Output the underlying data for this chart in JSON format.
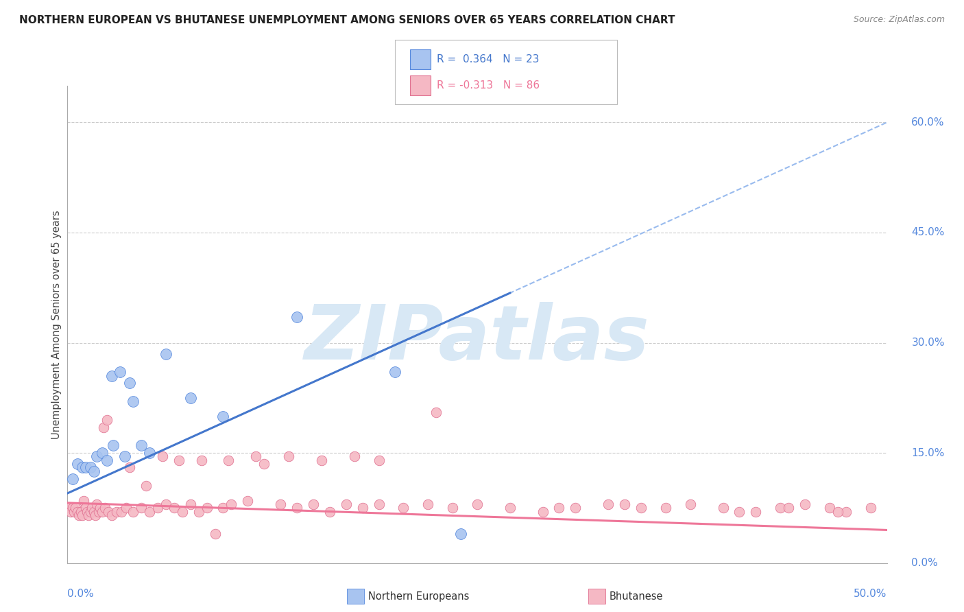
{
  "title": "NORTHERN EUROPEAN VS BHUTANESE UNEMPLOYMENT AMONG SENIORS OVER 65 YEARS CORRELATION CHART",
  "source": "Source: ZipAtlas.com",
  "ylabel": "Unemployment Among Seniors over 65 years",
  "xrange": [
    0.0,
    50.0
  ],
  "yrange": [
    0.0,
    65.0
  ],
  "blue_color": "#a8c4f0",
  "blue_edge_color": "#5588dd",
  "pink_color": "#f5b8c4",
  "pink_edge_color": "#e07090",
  "blue_line_color": "#4477cc",
  "pink_line_color": "#ee7799",
  "dashed_line_color": "#99bbee",
  "watermark_text": "ZIPatlas",
  "watermark_color": "#d8e8f5",
  "title_color": "#222222",
  "source_color": "#888888",
  "axis_label_color": "#5588dd",
  "blue_line_x0": 0.0,
  "blue_line_y0": 9.5,
  "blue_line_x1": 50.0,
  "blue_line_y1": 60.0,
  "pink_line_x0": 0.0,
  "pink_line_y0": 8.2,
  "pink_line_x1": 50.0,
  "pink_line_y1": 4.5,
  "blue_x": [
    0.3,
    0.6,
    0.9,
    1.1,
    1.4,
    1.6,
    1.8,
    2.1,
    2.4,
    2.7,
    3.2,
    3.5,
    4.0,
    4.5,
    5.0,
    6.0,
    7.5,
    9.5,
    14.0,
    20.0,
    24.0,
    2.8,
    3.8
  ],
  "blue_y": [
    11.5,
    13.5,
    13.0,
    13.0,
    13.0,
    12.5,
    14.5,
    15.0,
    14.0,
    25.5,
    26.0,
    14.5,
    22.0,
    16.0,
    15.0,
    28.5,
    22.5,
    20.0,
    33.5,
    26.0,
    4.0,
    16.0,
    24.5
  ],
  "pink_x": [
    0.1,
    0.2,
    0.3,
    0.4,
    0.5,
    0.6,
    0.7,
    0.8,
    0.9,
    1.0,
    1.1,
    1.2,
    1.3,
    1.4,
    1.5,
    1.6,
    1.7,
    1.8,
    1.9,
    2.0,
    2.1,
    2.2,
    2.3,
    2.5,
    2.7,
    3.0,
    3.3,
    3.6,
    4.0,
    4.5,
    5.0,
    5.5,
    6.0,
    6.5,
    7.0,
    7.5,
    8.0,
    8.5,
    9.0,
    9.5,
    10.0,
    11.0,
    12.0,
    13.0,
    14.0,
    15.0,
    16.0,
    17.0,
    18.0,
    19.0,
    20.5,
    22.0,
    23.5,
    25.0,
    27.0,
    29.0,
    31.0,
    33.0,
    35.0,
    36.5,
    38.0,
    40.0,
    42.0,
    43.5,
    45.0,
    46.5,
    47.5,
    49.0,
    2.4,
    3.8,
    5.8,
    6.8,
    8.2,
    9.8,
    11.5,
    13.5,
    15.5,
    17.5,
    19.0,
    4.8,
    22.5,
    30.0,
    41.0,
    47.0,
    44.0,
    34.0
  ],
  "pink_y": [
    7.5,
    7.0,
    7.5,
    7.0,
    7.5,
    7.0,
    6.5,
    7.0,
    6.5,
    8.5,
    7.5,
    7.0,
    6.5,
    7.0,
    7.5,
    7.0,
    6.5,
    8.0,
    7.0,
    7.5,
    7.0,
    18.5,
    7.5,
    7.0,
    6.5,
    7.0,
    7.0,
    7.5,
    7.0,
    7.5,
    7.0,
    7.5,
    8.0,
    7.5,
    7.0,
    8.0,
    7.0,
    7.5,
    4.0,
    7.5,
    8.0,
    8.5,
    13.5,
    8.0,
    7.5,
    8.0,
    7.0,
    8.0,
    7.5,
    8.0,
    7.5,
    8.0,
    7.5,
    8.0,
    7.5,
    7.0,
    7.5,
    8.0,
    7.5,
    7.5,
    8.0,
    7.5,
    7.0,
    7.5,
    8.0,
    7.5,
    7.0,
    7.5,
    19.5,
    13.0,
    14.5,
    14.0,
    14.0,
    14.0,
    14.5,
    14.5,
    14.0,
    14.5,
    14.0,
    10.5,
    20.5,
    7.5,
    7.0,
    7.0,
    7.5,
    8.0
  ]
}
